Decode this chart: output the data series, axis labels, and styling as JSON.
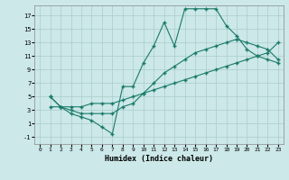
{
  "xlabel": "Humidex (Indice chaleur)",
  "bg_color": "#cce8e8",
  "grid_color": "#aacccc",
  "line_color": "#1a7a6a",
  "xlim": [
    -0.5,
    23.5
  ],
  "ylim": [
    -2.0,
    18.5
  ],
  "xticks": [
    0,
    1,
    2,
    3,
    4,
    5,
    6,
    7,
    8,
    9,
    10,
    11,
    12,
    13,
    14,
    15,
    16,
    17,
    18,
    19,
    20,
    21,
    22,
    23
  ],
  "yticks": [
    -1,
    1,
    3,
    5,
    7,
    9,
    11,
    13,
    15,
    17
  ],
  "line1_x": [
    1,
    2,
    3,
    4,
    5,
    6,
    7,
    8,
    9,
    10,
    11,
    12,
    13,
    14,
    15,
    16,
    17,
    18,
    19,
    20,
    21,
    22,
    23
  ],
  "line1_y": [
    5,
    3.5,
    2.5,
    2.0,
    1.5,
    0.5,
    -0.5,
    6.5,
    6.5,
    10,
    12.5,
    16,
    12.5,
    18,
    18,
    18,
    18,
    15.5,
    14,
    12,
    11,
    10.5,
    10
  ],
  "line2_x": [
    1,
    2,
    3,
    4,
    5,
    6,
    7,
    8,
    9,
    10,
    11,
    12,
    13,
    14,
    15,
    16,
    17,
    18,
    19,
    20,
    21,
    22,
    23
  ],
  "line2_y": [
    3.5,
    3.5,
    3.5,
    3.5,
    4.0,
    4.0,
    4.0,
    4.5,
    5.0,
    5.5,
    6.0,
    6.5,
    7.0,
    7.5,
    8.0,
    8.5,
    9.0,
    9.5,
    10.0,
    10.5,
    11.0,
    11.5,
    13.0
  ],
  "line3_x": [
    1,
    2,
    3,
    4,
    5,
    6,
    7,
    8,
    9,
    10,
    11,
    12,
    13,
    14,
    15,
    16,
    17,
    18,
    19,
    20,
    21,
    22,
    23
  ],
  "line3_y": [
    5,
    3.5,
    3.0,
    2.5,
    2.5,
    2.5,
    2.5,
    3.5,
    4.0,
    5.5,
    7.0,
    8.5,
    9.5,
    10.5,
    11.5,
    12.0,
    12.5,
    13.0,
    13.5,
    13.0,
    12.5,
    12.0,
    10.5
  ]
}
